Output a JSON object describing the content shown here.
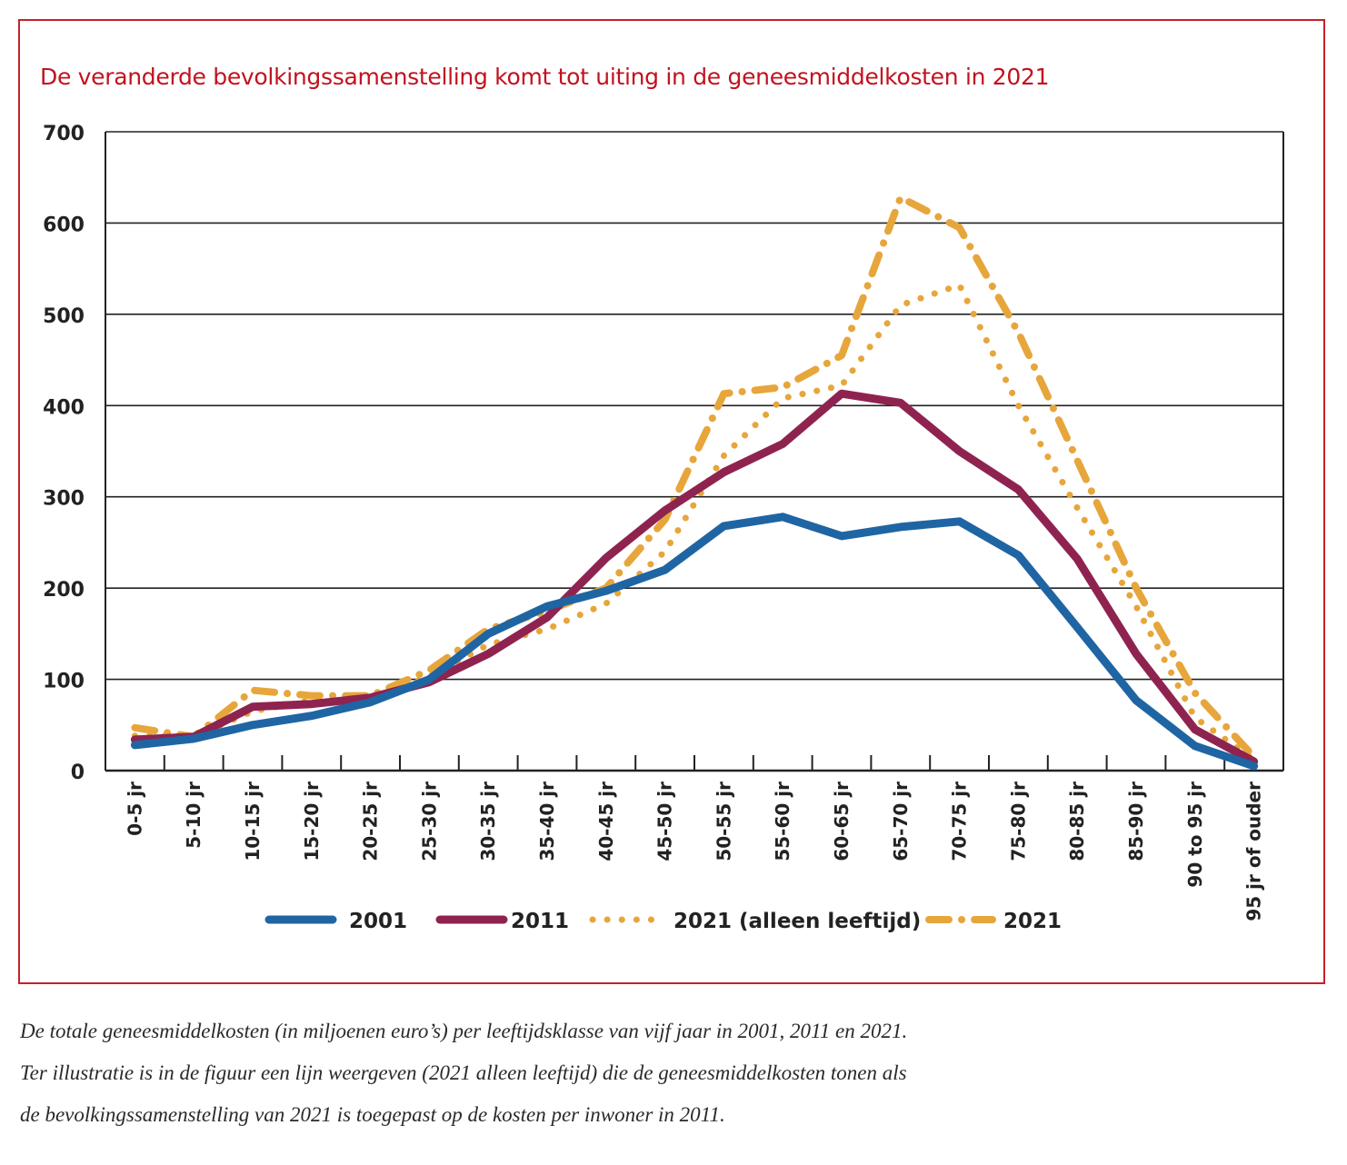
{
  "colors": {
    "frame": "#c8202a",
    "title": "#c1121f",
    "s2001": "#1f65a3",
    "s2011": "#8f2350",
    "s2021": "#e7a63b",
    "axis": "#222222"
  },
  "chart_data": {
    "type": "line",
    "title": "De veranderde bevolkingssamenstelling komt tot uiting in de geneesmiddelkosten in 2021",
    "xlabel": "",
    "ylabel": "",
    "ylim": [
      0,
      700
    ],
    "yticks": [
      "0",
      "100",
      "200",
      "300",
      "400",
      "500",
      "600",
      "700"
    ],
    "grid": true,
    "legend_position": "bottom-center",
    "categories": [
      "0-5 jr",
      "5-10 jr",
      "10-15 jr",
      "15-20 jr",
      "20-25 jr",
      "25-30 jr",
      "30-35 jr",
      "35-40 jr",
      "40-45 jr",
      "45-50 jr",
      "50-55 jr",
      "55-60 jr",
      "60-65 jr",
      "65-70 jr",
      "70-75 jr",
      "75-80 jr",
      "80-85 jr",
      "85-90 jr",
      "90 to  95 jr",
      "95 jr of ouder"
    ],
    "series": [
      {
        "name": "2001",
        "style": "solid",
        "color_key": "s2001",
        "values": [
          28,
          35,
          50,
          60,
          75,
          100,
          150,
          180,
          197,
          220,
          268,
          278,
          257,
          267,
          273,
          236,
          157,
          77,
          27,
          5
        ]
      },
      {
        "name": "2011",
        "style": "solid",
        "color_key": "s2011",
        "values": [
          34,
          37,
          70,
          73,
          80,
          97,
          128,
          168,
          233,
          285,
          327,
          358,
          413,
          403,
          350,
          308,
          232,
          128,
          45,
          10
        ]
      },
      {
        "name": "2021 (alleen leeftijd)",
        "style": "dotted",
        "color_key": "s2021",
        "values": [
          38,
          37,
          65,
          77,
          80,
          103,
          138,
          155,
          183,
          240,
          345,
          408,
          422,
          510,
          532,
          400,
          288,
          180,
          58,
          12
        ]
      },
      {
        "name": "2021",
        "style": "dashdot",
        "color_key": "s2021",
        "values": [
          47,
          37,
          88,
          82,
          82,
          110,
          155,
          175,
          200,
          275,
          413,
          420,
          455,
          628,
          595,
          480,
          340,
          200,
          85,
          15
        ]
      }
    ]
  },
  "caption": {
    "line1": "De totale geneesmiddelkosten (in miljoenen euro’s) per leeftijdsklasse van vijf jaar in 2001, 2011 en 2021.",
    "line2": "Ter illustratie is in de figuur een lijn weergeven (2021 alleen leeftijd) die de geneesmiddelkosten tonen als",
    "line3": "de bevolkingssamenstelling van 2021 is toegepast op de kosten per inwoner in 2011."
  }
}
